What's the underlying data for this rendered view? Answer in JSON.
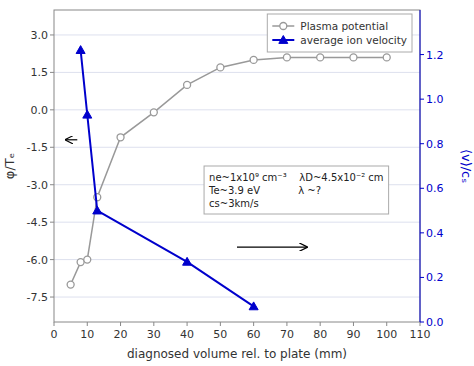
{
  "chart_data": {
    "type": "line",
    "x_label": "diagnosed volume rel. to plate (mm)",
    "y_label": "φ/Tₑ",
    "y2_label": "⟨v⟩/cₛ",
    "xlim": [
      0,
      110
    ],
    "xticks": [
      0,
      10,
      20,
      30,
      40,
      50,
      60,
      70,
      80,
      90,
      100,
      110
    ],
    "ylim": [
      -8.5,
      4.0
    ],
    "yticks": [
      -7.5,
      {
        "value": -6.0,
        "label": "-6.0"
      },
      -4.5,
      {
        "value": -3.0,
        "label": "-3.0"
      },
      -1.5,
      {
        "value": 0.0,
        "label": "0.0"
      },
      1.5,
      {
        "value": 3.0,
        "label": "3.0"
      }
    ],
    "y2lim": [
      0.0,
      1.4
    ],
    "y2ticks": [
      {
        "value": 0.0,
        "label": "0.0"
      },
      0.2,
      0.4,
      0.6,
      0.8,
      {
        "value": 1.0,
        "label": "1.0"
      },
      1.2
    ],
    "grid": true,
    "legend": "upper right",
    "series": [
      {
        "name": "Plasma potential",
        "color": "#999999",
        "marker": "circle",
        "x": [
          5,
          8,
          10,
          13,
          20,
          30,
          40,
          50,
          60,
          70,
          80,
          90,
          100
        ],
        "values": [
          -7.0,
          -6.1,
          -6.0,
          -3.5,
          -1.1,
          -0.1,
          1.0,
          1.7,
          2.0,
          2.1,
          2.1,
          2.1,
          2.1
        ]
      },
      {
        "name": "average ion velocity",
        "color": "#0000cc",
        "marker": "triangle",
        "axis": "y2",
        "x": [
          8,
          10,
          13,
          40,
          60
        ],
        "values": [
          1.22,
          0.93,
          0.5,
          0.27,
          0.07
        ]
      }
    ],
    "arrows": [
      {
        "x": [
          7,
          3.5
        ],
        "y": [
          -1.2,
          -1.2
        ]
      },
      {
        "x": [
          55,
          76
        ],
        "y": [
          -5.5,
          -5.5
        ]
      }
    ],
    "annotations": [
      {
        "text": [
          "ne~1x10⁹ cm⁻³    λD~4.5x10⁻² cm",
          "Te~3.9 eV            λ ~?",
          "cs~3km/s"
        ]
      }
    ]
  }
}
